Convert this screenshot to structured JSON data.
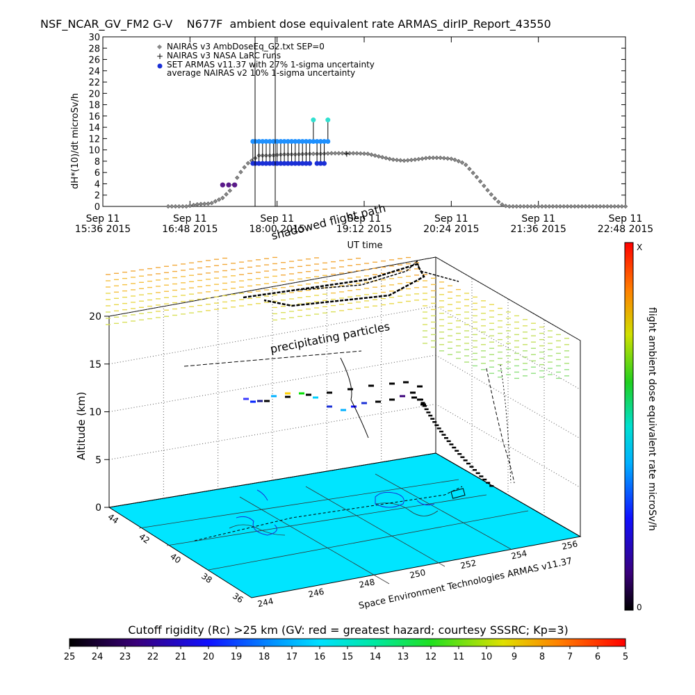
{
  "title": "NSF_NCAR_GV_FM2 G-V    N677F  ambient dose equivalent rate ARMAS_dirIP_Report_43550",
  "colors": {
    "armas_blue": "#1e90ff",
    "armas_navy": "#1a2fd6",
    "armas_purple": "#5a1a8a",
    "armas_cyan": "#30e0d0",
    "globe": "#00e5ff",
    "nairas_gray": "#888888"
  },
  "top_plot": {
    "ylabel": "dH*(10)/dt microSv/h",
    "xlabel": "UT time",
    "x_ticks": [
      {
        "line1": "Sep 11",
        "line2": "15:36 2015"
      },
      {
        "line1": "Sep 11",
        "line2": "16:48 2015"
      },
      {
        "line1": "Sep 11",
        "line2": "18:00 2015"
      },
      {
        "line1": "Sep 11",
        "line2": "19:12 2015"
      },
      {
        "line1": "Sep 11",
        "line2": "20:24 2015"
      },
      {
        "line1": "Sep 11",
        "line2": "21:36 2015"
      },
      {
        "line1": "Sep 11",
        "line2": "22:48 2015"
      }
    ],
    "legend": [
      "NAIRAS v3 AmbDoseEq_G2.txt SEP=0",
      "NAIRAS v3 NASA LaRC runs",
      "SET ARMAS v11.37 with 27% 1-sigma uncertainty",
      "average NAIRAS v2 10% 1-sigma uncertainty"
    ]
  },
  "chart_data": [
    {
      "type": "scatter",
      "title": "NSF_NCAR_GV_FM2 G-V    N677F  ambient dose equivalent rate ARMAS_dirIP_Report_43550",
      "xlabel": "UT time",
      "ylabel": "dH*(10)/dt microSv/h",
      "ylim": [
        0,
        30
      ],
      "xlim_minutes": [
        936,
        1368
      ],
      "series": [
        {
          "name": "NAIRAS v3 AmbDoseEq_G2.txt SEP=0",
          "x_minutes": [
            997,
            1005,
            1015,
            1025,
            1035,
            1042,
            1048,
            1055,
            1065,
            1075,
            1085,
            1095,
            1105,
            1115,
            1125,
            1130,
            1135,
            1145,
            1155,
            1165,
            1175,
            1185,
            1195,
            1205,
            1215,
            1225,
            1235,
            1245,
            1255,
            1260,
            1265,
            1270,
            1275
          ],
          "y": [
            0,
            0,
            0.4,
            0.5,
            1.5,
            3,
            5.5,
            7.5,
            9,
            9,
            9.2,
            9.2,
            9.3,
            9.3,
            9.4,
            9.4,
            9.4,
            9.4,
            9.3,
            8.8,
            8.3,
            8.1,
            8.3,
            8.6,
            8.6,
            8.4,
            7.6,
            5.2,
            2.6,
            1.4,
            0.4,
            0,
            0
          ]
        },
        {
          "name": "SET ARMAS v11.37 with 27% 1-sigma uncertainty",
          "x_minutes": [
            1035,
            1040,
            1045,
            1060,
            1062,
            1065,
            1068,
            1071,
            1074,
            1077,
            1080,
            1083,
            1086,
            1089,
            1092,
            1095,
            1098,
            1101,
            1104,
            1107,
            1110,
            1113,
            1116,
            1119,
            1122
          ],
          "y": [
            3.8,
            3.8,
            3.8,
            11.5,
            11.5,
            11.5,
            11.5,
            11.5,
            11.5,
            11.5,
            11.5,
            11.5,
            11.5,
            11.5,
            11.5,
            11.5,
            11.5,
            11.5,
            11.5,
            11.5,
            15.3,
            11.5,
            11.5,
            11.5,
            15.3
          ],
          "y_low": [
            3.8,
            3.8,
            3.8,
            7.6,
            7.6,
            7.6,
            7.6,
            7.6,
            7.6,
            7.6,
            7.6,
            7.6,
            7.6,
            7.6,
            7.6,
            7.6,
            7.6,
            7.6,
            7.6,
            7.6,
            11.5,
            7.6,
            7.6,
            7.6,
            11.5
          ]
        },
        {
          "name": "NAIRAS v3 NASA LaRC runs",
          "x_minutes": [
            1137
          ],
          "y": [
            9.3
          ]
        }
      ]
    },
    {
      "type": "scatter",
      "title": "flight ambient dose equivalent rate microSv/h",
      "ylabel": "Altitude (km)",
      "zlim": [
        0,
        20
      ],
      "lat_ticks": [
        44,
        42,
        40,
        38,
        36
      ],
      "lon_ticks": [
        244,
        246,
        248,
        250,
        252,
        254,
        256
      ],
      "z_ticks": [
        0,
        5,
        10,
        15,
        20
      ],
      "colorbar_range": [
        "0",
        "X"
      ],
      "annotations": [
        "shadowed flight path",
        "precipitating particles"
      ],
      "credit": "Space Environment Technologies ARMAS v11.37"
    },
    {
      "type": "heatmap",
      "title": "Cutoff rigidity (Rc) >25 km (GV: red = greatest hazard; courtesy SSSRC; Kp=3)",
      "colorbar_ticks": [
        "25",
        "24",
        "23",
        "22",
        "21",
        "20",
        "19",
        "18",
        "17",
        "16",
        "15",
        "14",
        "13",
        "12",
        "11",
        "10",
        "9",
        "8",
        "7",
        "6",
        "5"
      ]
    }
  ],
  "scene": {
    "ylabel": "Altitude (km)",
    "z_ticks": [
      "0",
      "5",
      "10",
      "15",
      "20"
    ],
    "lat_ticks": [
      "44",
      "42",
      "40",
      "38",
      "36"
    ],
    "lon_ticks": [
      "244",
      "246",
      "248",
      "250",
      "252",
      "254",
      "256"
    ],
    "annotation_shadow": "shadowed flight path",
    "annotation_precip": "precipitating particles",
    "credit": "Space Environment Technologies ARMAS v11.37",
    "colorbar_title": "flight ambient dose equivalent rate microSv/h",
    "colorbar_max": "X",
    "colorbar_min": "0"
  },
  "bottom_bar": {
    "title": "Cutoff rigidity (Rc) >25 km (GV: red = greatest hazard; courtesy SSSRC; Kp=3)",
    "ticks": [
      "25",
      "24",
      "23",
      "22",
      "21",
      "20",
      "19",
      "18",
      "17",
      "16",
      "15",
      "14",
      "13",
      "12",
      "11",
      "10",
      "9",
      "8",
      "7",
      "6",
      "5"
    ]
  }
}
